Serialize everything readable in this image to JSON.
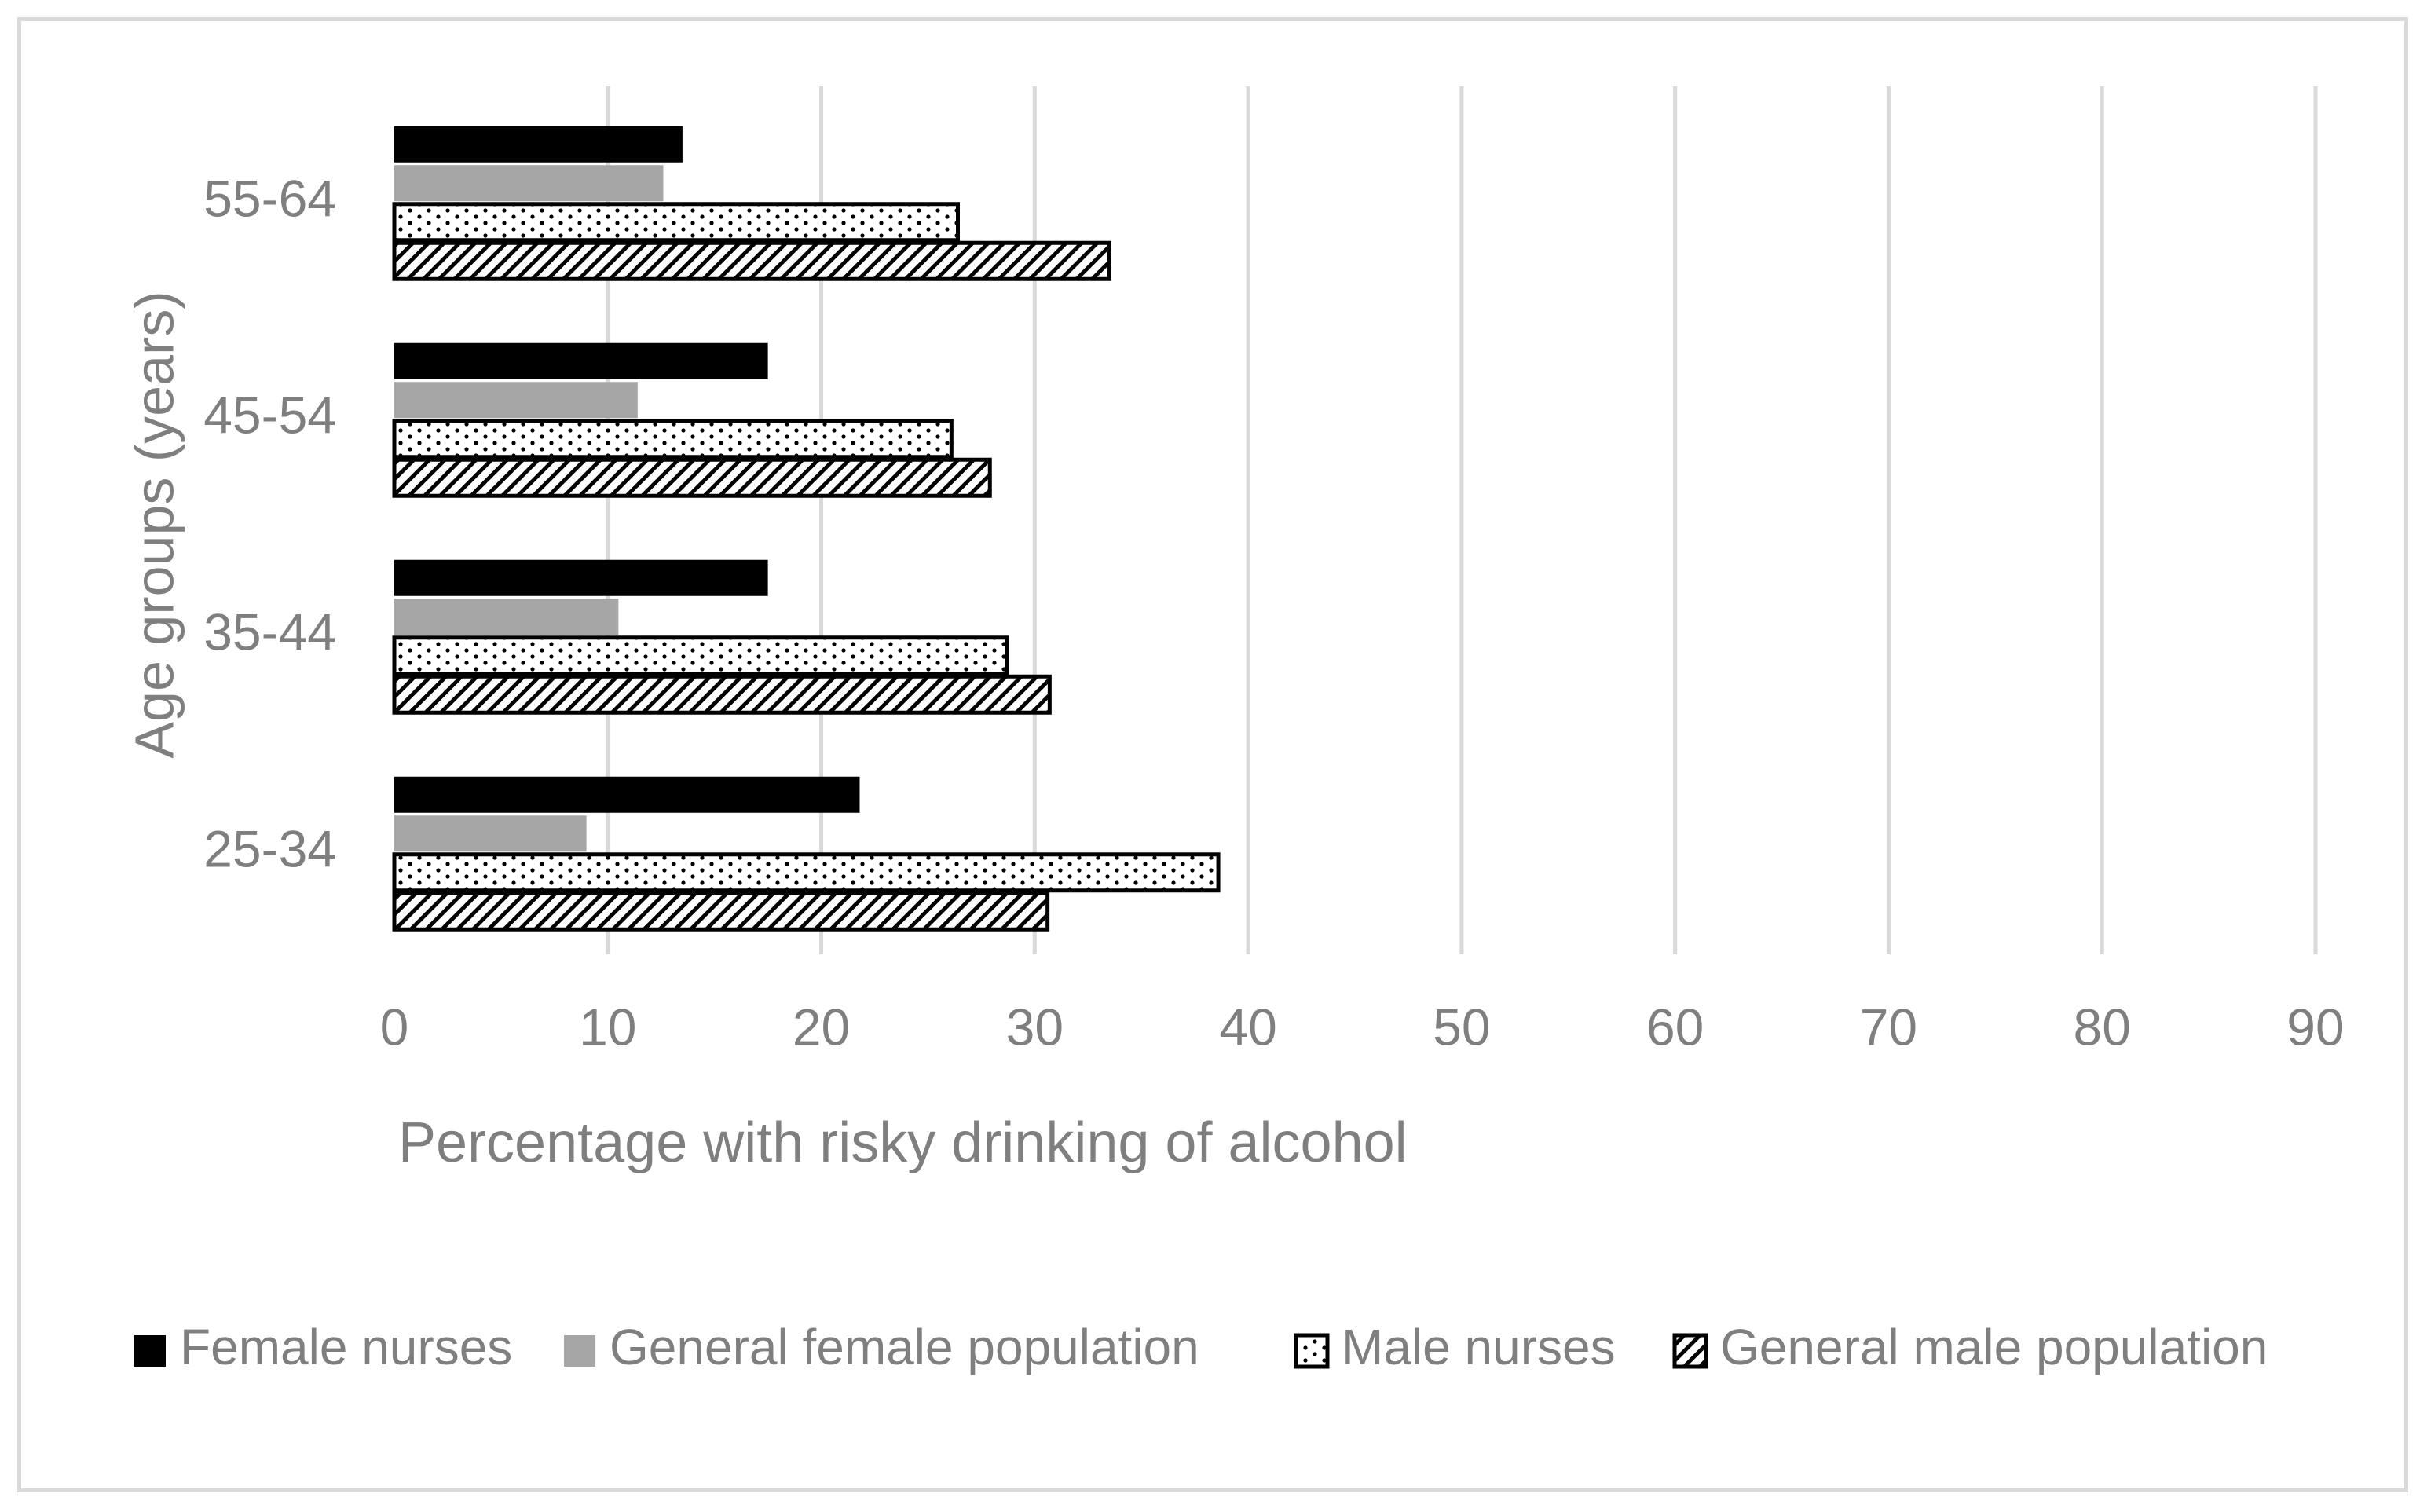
{
  "chart_data": {
    "type": "bar",
    "orientation": "horizontal",
    "title": "",
    "xlabel": "Percentage with risky drinking of alcohol",
    "ylabel": "Age groups (years)",
    "categories": [
      "55-64",
      "45-54",
      "35-44",
      "25-34"
    ],
    "xlim": [
      0,
      90
    ],
    "x_ticks": [
      "0",
      "10",
      "20",
      "30",
      "40",
      "50",
      "60",
      "70",
      "80",
      "90"
    ],
    "grid": true,
    "legend_position": "bottom",
    "series": [
      {
        "name": "Female nurses",
        "values": [
          13.5,
          17.5,
          17.5,
          21.8
        ],
        "fill": "solid",
        "color": "#000000"
      },
      {
        "name": "General female population",
        "values": [
          12.6,
          11.4,
          10.5,
          9.0
        ],
        "fill": "solid",
        "color": "#a6a6a6"
      },
      {
        "name": "Male nurses",
        "values": [
          26.4,
          26.1,
          28.7,
          38.6
        ],
        "fill": "dots",
        "color": "#000000"
      },
      {
        "name": "General male population",
        "values": [
          33.5,
          27.9,
          30.7,
          30.6
        ],
        "fill": "diagonal",
        "color": "#000000"
      }
    ]
  },
  "colors": {
    "axis_text": "#7f7f7f",
    "gridline": "#d9d9d9",
    "frame": "#d9d9d9"
  }
}
